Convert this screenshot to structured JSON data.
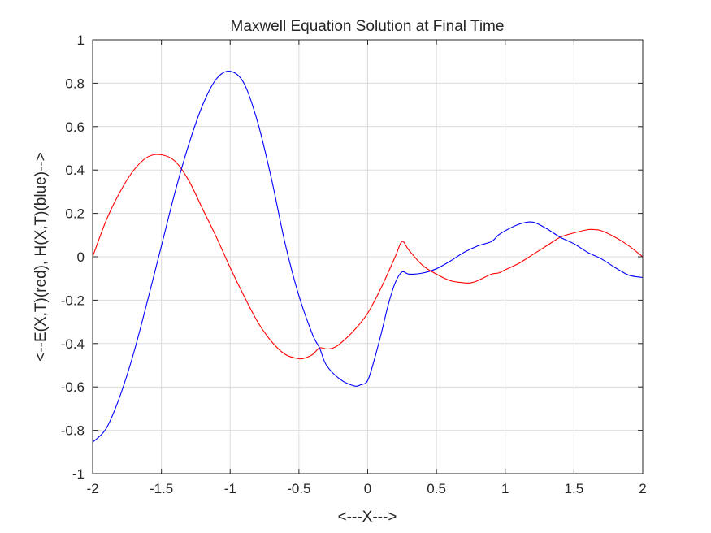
{
  "chart_data": {
    "type": "line",
    "title": "Maxwell Equation Solution at Final Time",
    "xlabel": "<---X--->",
    "ylabel": "<--E(X,T)(red),  H(X,T)(blue)-->",
    "xlim": [
      -2,
      2
    ],
    "ylim": [
      -1,
      1
    ],
    "xticks": [
      -2,
      -1.5,
      -1,
      -0.5,
      0,
      0.5,
      1,
      1.5,
      2
    ],
    "xtick_labels": [
      "-2",
      "-1.5",
      "-1",
      "-0.5",
      "0",
      "0.5",
      "1",
      "1.5",
      "2"
    ],
    "yticks": [
      -1,
      -0.8,
      -0.6,
      -0.4,
      -0.2,
      0,
      0.2,
      0.4,
      0.6,
      0.8,
      1
    ],
    "ytick_labels": [
      "-1",
      "-0.8",
      "-0.6",
      "-0.4",
      "-0.2",
      "0",
      "0.2",
      "0.4",
      "0.6",
      "0.8",
      "1"
    ],
    "grid": true,
    "series": [
      {
        "color": "#ff0000",
        "x": [
          -2.0,
          -1.9,
          -1.8,
          -1.7,
          -1.6,
          -1.5,
          -1.4,
          -1.3,
          -1.2,
          -1.1,
          -1.0,
          -0.9,
          -0.8,
          -0.7,
          -0.6,
          -0.5,
          -0.45,
          -0.4,
          -0.35,
          -0.3,
          -0.25,
          -0.2,
          -0.1,
          0.0,
          0.1,
          0.2,
          0.25,
          0.3,
          0.4,
          0.5,
          0.6,
          0.7,
          0.75,
          0.8,
          0.9,
          0.95,
          1.0,
          1.1,
          1.2,
          1.3,
          1.4,
          1.5,
          1.6,
          1.65,
          1.7,
          1.8,
          1.9,
          2.0
        ],
        "y": [
          0.0,
          0.17,
          0.3,
          0.4,
          0.46,
          0.47,
          0.44,
          0.35,
          0.22,
          0.09,
          -0.05,
          -0.18,
          -0.3,
          -0.39,
          -0.45,
          -0.47,
          -0.465,
          -0.45,
          -0.42,
          -0.425,
          -0.42,
          -0.4,
          -0.34,
          -0.26,
          -0.14,
          0.0,
          0.07,
          0.03,
          -0.04,
          -0.08,
          -0.11,
          -0.12,
          -0.12,
          -0.11,
          -0.08,
          -0.075,
          -0.06,
          -0.03,
          0.01,
          0.05,
          0.09,
          0.11,
          0.125,
          0.125,
          0.12,
          0.09,
          0.05,
          0.0
        ]
      },
      {
        "color": "#0000ff",
        "x": [
          -2.0,
          -1.9,
          -1.8,
          -1.7,
          -1.6,
          -1.5,
          -1.4,
          -1.3,
          -1.2,
          -1.1,
          -1.0,
          -0.9,
          -0.8,
          -0.7,
          -0.6,
          -0.5,
          -0.4,
          -0.35,
          -0.3,
          -0.2,
          -0.1,
          -0.05,
          0.0,
          0.05,
          0.1,
          0.15,
          0.2,
          0.25,
          0.3,
          0.4,
          0.5,
          0.6,
          0.7,
          0.8,
          0.9,
          0.95,
          1.0,
          1.1,
          1.2,
          1.3,
          1.4,
          1.5,
          1.6,
          1.7,
          1.8,
          1.9,
          2.0
        ],
        "y": [
          -0.855,
          -0.79,
          -0.64,
          -0.44,
          -0.2,
          0.05,
          0.3,
          0.52,
          0.7,
          0.82,
          0.855,
          0.8,
          0.62,
          0.36,
          0.06,
          -0.18,
          -0.36,
          -0.42,
          -0.5,
          -0.565,
          -0.595,
          -0.59,
          -0.57,
          -0.47,
          -0.35,
          -0.22,
          -0.12,
          -0.07,
          -0.08,
          -0.075,
          -0.055,
          -0.02,
          0.02,
          0.05,
          0.07,
          0.1,
          0.12,
          0.15,
          0.16,
          0.13,
          0.09,
          0.06,
          0.02,
          -0.01,
          -0.05,
          -0.085,
          -0.095
        ]
      }
    ]
  }
}
